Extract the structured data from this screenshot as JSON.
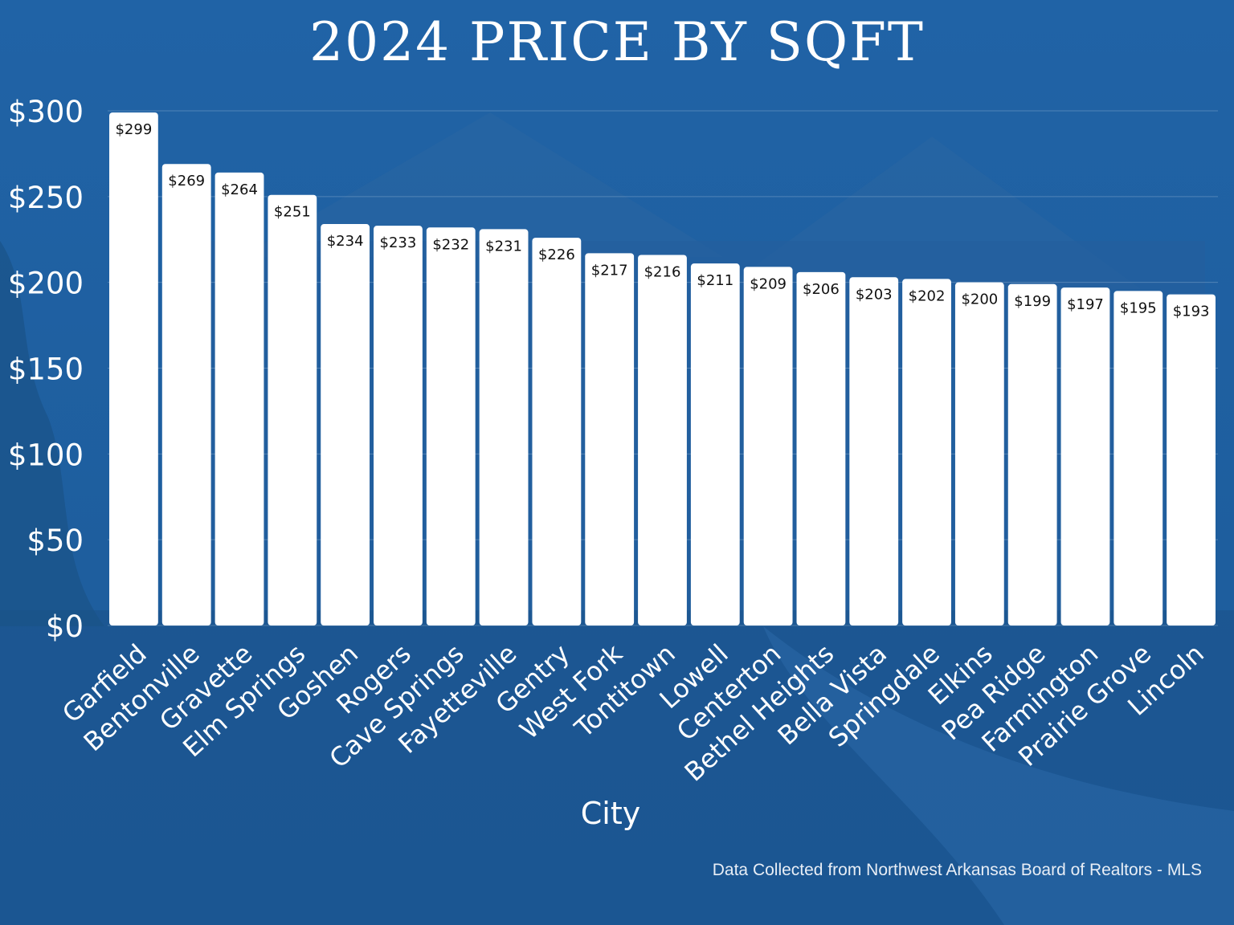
{
  "chart_data": {
    "type": "bar",
    "title": "2024 PRICE BY SQFT",
    "xlabel": "City",
    "ylabel": "",
    "ylim": [
      0,
      300
    ],
    "yticks": [
      "$0",
      "$50",
      "$100",
      "$150",
      "$200",
      "$250",
      "$300"
    ],
    "categories": [
      "Garfield",
      "Bentonville",
      "Gravette",
      "Elm Springs",
      "Goshen",
      "Rogers",
      "Cave Springs",
      "Fayetteville",
      "Gentry",
      "West Fork",
      "Tontitown",
      "Lowell",
      "Centerton",
      "Bethel Heights",
      "Bella Vista",
      "Springdale",
      "Elkins",
      "Pea Ridge",
      "Farmington",
      "Prairie Grove",
      "Lincoln"
    ],
    "values": [
      299,
      269,
      264,
      251,
      234,
      233,
      232,
      231,
      226,
      217,
      216,
      211,
      209,
      206,
      203,
      202,
      200,
      199,
      197,
      195,
      193
    ],
    "data_labels": [
      "$299",
      "$269",
      "$264",
      "$251",
      "$234",
      "$233",
      "$232",
      "$231",
      "$226",
      "$217",
      "$216",
      "$211",
      "$209",
      "$206",
      "$203",
      "$202",
      "$200",
      "$199",
      "$197",
      "$195",
      "$193"
    ],
    "grid": true,
    "legend": "none"
  },
  "source_note": "Data Collected from Northwest Arkansas Board of Realtors - MLS",
  "colors": {
    "background": "#1f5d9c",
    "bar": "#ffffff",
    "label": "#111111",
    "axis_text": "#ffffff"
  }
}
